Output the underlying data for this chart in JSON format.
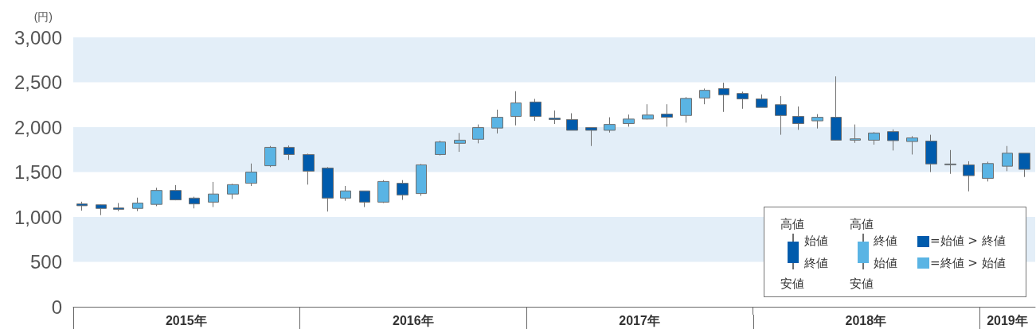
{
  "chart_data": {
    "type": "candlestick",
    "ylabel": "(円)",
    "x": [
      "2015-01-15",
      "2015-02-15",
      "2015-03-15",
      "2015-04-15",
      "2015-05-15",
      "2015-06-15",
      "2015-07-15",
      "2015-08-15",
      "2015-09-15",
      "2015-10-15",
      "2015-11-15",
      "2015-12-15",
      "2016-01-15",
      "2016-02-15",
      "2016-03-15",
      "2016-04-15",
      "2016-05-15",
      "2016-06-15",
      "2016-07-15",
      "2016-08-15",
      "2016-09-15",
      "2016-10-15",
      "2016-11-15",
      "2016-12-15",
      "2017-01-15",
      "2017-02-15",
      "2017-03-15",
      "2017-04-15",
      "2017-05-15",
      "2017-06-15",
      "2017-07-15",
      "2017-08-15",
      "2017-09-15",
      "2017-10-15",
      "2017-11-15",
      "2017-12-15",
      "2018-01-15",
      "2018-02-15",
      "2018-03-15",
      "2018-04-15",
      "2018-05-15",
      "2018-06-15",
      "2018-07-15",
      "2018-08-15",
      "2018-09-15",
      "2018-10-15",
      "2018-11-15",
      "2018-12-15",
      "2019-01-15",
      "2019-02-15",
      "2019-03-15"
    ],
    "ohlc": [
      [
        1145,
        1170,
        1070,
        1125
      ],
      [
        1135,
        1140,
        1020,
        1095
      ],
      [
        1100,
        1155,
        1065,
        1085
      ],
      [
        1095,
        1215,
        1065,
        1155
      ],
      [
        1140,
        1325,
        1120,
        1295
      ],
      [
        1295,
        1355,
        1185,
        1190
      ],
      [
        1210,
        1225,
        1095,
        1145
      ],
      [
        1165,
        1390,
        1110,
        1255
      ],
      [
        1255,
        1370,
        1200,
        1360
      ],
      [
        1375,
        1595,
        1345,
        1500
      ],
      [
        1570,
        1790,
        1555,
        1775
      ],
      [
        1775,
        1795,
        1635,
        1695
      ],
      [
        1695,
        1705,
        1360,
        1510
      ],
      [
        1545,
        1555,
        1060,
        1210
      ],
      [
        1210,
        1345,
        1180,
        1290
      ],
      [
        1290,
        1290,
        1110,
        1165
      ],
      [
        1165,
        1410,
        1155,
        1395
      ],
      [
        1375,
        1410,
        1190,
        1245
      ],
      [
        1260,
        1590,
        1235,
        1580
      ],
      [
        1695,
        1850,
        1685,
        1835
      ],
      [
        1820,
        1935,
        1725,
        1855
      ],
      [
        1865,
        2030,
        1820,
        1995
      ],
      [
        1990,
        2195,
        1930,
        2110
      ],
      [
        2120,
        2400,
        2020,
        2270
      ],
      [
        2280,
        2315,
        2070,
        2120
      ],
      [
        2100,
        2185,
        2035,
        2085
      ],
      [
        2085,
        2155,
        1965,
        1965
      ],
      [
        1995,
        1995,
        1790,
        1965
      ],
      [
        1965,
        2110,
        1940,
        2030
      ],
      [
        2040,
        2140,
        2005,
        2090
      ],
      [
        2090,
        2255,
        2085,
        2135
      ],
      [
        2145,
        2255,
        2005,
        2110
      ],
      [
        2130,
        2335,
        2050,
        2320
      ],
      [
        2325,
        2430,
        2255,
        2410
      ],
      [
        2430,
        2495,
        2170,
        2360
      ],
      [
        2375,
        2395,
        2205,
        2315
      ],
      [
        2315,
        2365,
        2220,
        2220
      ],
      [
        2250,
        2345,
        1915,
        2130
      ],
      [
        2120,
        2230,
        1970,
        2040
      ],
      [
        2070,
        2145,
        1985,
        2110
      ],
      [
        2110,
        2565,
        1850,
        1855
      ],
      [
        1855,
        2030,
        1825,
        1870
      ],
      [
        1855,
        1945,
        1805,
        1935
      ],
      [
        1950,
        1975,
        1740,
        1850
      ],
      [
        1840,
        1900,
        1695,
        1880
      ],
      [
        1845,
        1915,
        1500,
        1590
      ],
      [
        1580,
        1745,
        1480,
        1590
      ],
      [
        1580,
        1620,
        1285,
        1460
      ],
      [
        1430,
        1615,
        1395,
        1595
      ],
      [
        1565,
        1790,
        1510,
        1710
      ],
      [
        1710,
        1710,
        1445,
        1530
      ]
    ],
    "colors": [
      "#005bac",
      "#005bac",
      "#005bac",
      "#5ab4e4",
      "#5ab4e4",
      "#005bac",
      "#005bac",
      "#5ab4e4",
      "#5ab4e4",
      "#5ab4e4",
      "#5ab4e4",
      "#005bac",
      "#005bac",
      "#005bac",
      "#5ab4e4",
      "#005bac",
      "#5ab4e4",
      "#005bac",
      "#5ab4e4",
      "#5ab4e4",
      "#5ab4e4",
      "#5ab4e4",
      "#5ab4e4",
      "#5ab4e4",
      "#005bac",
      "#005bac",
      "#005bac",
      "#005bac",
      "#5ab4e4",
      "#5ab4e4",
      "#5ab4e4",
      "#005bac",
      "#5ab4e4",
      "#5ab4e4",
      "#005bac",
      "#005bac",
      "#005bac",
      "#005bac",
      "#005bac",
      "#5ab4e4",
      "#005bac",
      "#5ab4e4",
      "#5ab4e4",
      "#005bac",
      "#5ab4e4",
      "#005bac",
      "#5ab4e4",
      "#005bac",
      "#5ab4e4",
      "#5ab4e4",
      "#005bac"
    ],
    "xlim": [
      "2015-01",
      "2019-04"
    ],
    "xticks": [
      {
        "value": "2015-01",
        "label": null
      },
      {
        "value": "2015-07-02",
        "label": "2015年"
      },
      {
        "value": "2016-01",
        "label": null
      },
      {
        "value": "2016-07-02",
        "label": "2016年"
      },
      {
        "value": "2017-01",
        "label": null
      },
      {
        "value": "2017-07-02",
        "label": "2017年"
      },
      {
        "value": "2018-01",
        "label": null
      },
      {
        "value": "2018-07-02",
        "label": "2018年"
      },
      {
        "value": "2019-01",
        "label": null
      },
      {
        "value": "2019-02-15",
        "label": "2019年"
      }
    ],
    "ylim": [
      0,
      3000
    ],
    "yticks": [
      0,
      500,
      {
        "value": 1000,
        "label": "1,000"
      },
      {
        "value": 1500,
        "label": "1,500"
      },
      {
        "value": 2000,
        "label": "2,000"
      },
      {
        "value": 2500,
        "label": "2,500"
      },
      {
        "value": 3000,
        "label": "3,000"
      }
    ],
    "bands": [
      {
        "axis": "y",
        "from": 500,
        "to": 1000,
        "color": "#e3eef8"
      },
      {
        "axis": "y",
        "from": 1500,
        "to": 2000,
        "color": "#e3eef8"
      },
      {
        "axis": "y",
        "from": 2500,
        "to": 3000,
        "color": "#e3eef8"
      }
    ],
    "grid": false,
    "annotations": [
      "高値",
      "始値",
      "終値",
      "安値",
      "高値",
      "終値",
      "始値",
      "安値",
      "=始値 > 終値",
      "=終値 > 始値"
    ]
  }
}
